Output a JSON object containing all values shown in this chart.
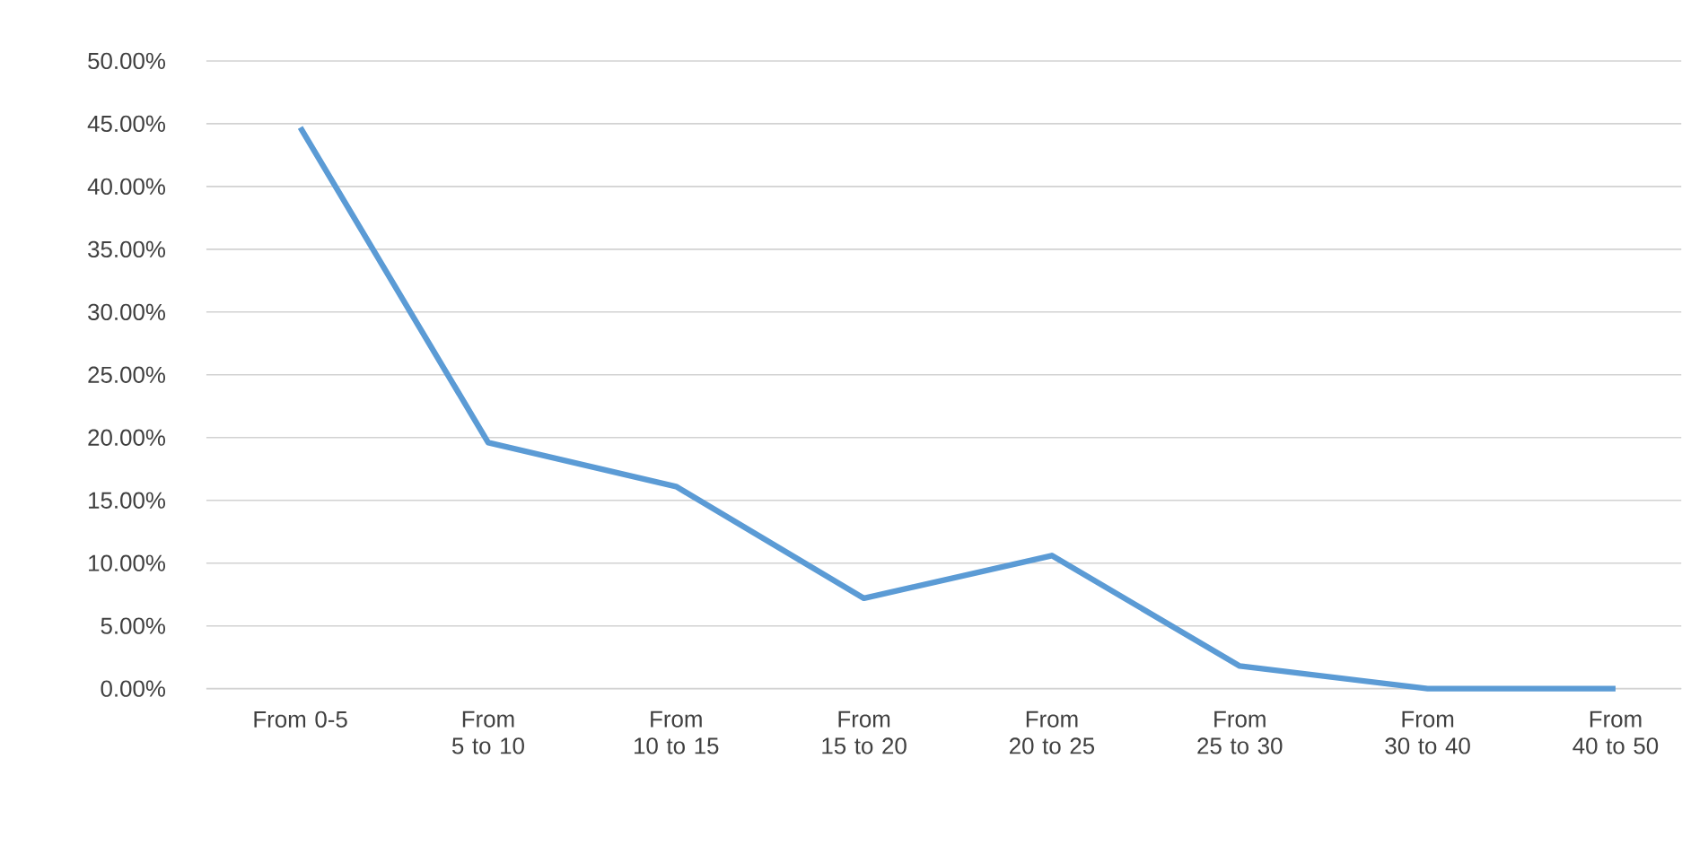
{
  "chart_data": {
    "type": "line",
    "categories": [
      "From 0-5",
      "From 5 to 10",
      "From 10 to 15",
      "From 15 to 20",
      "From 20 to 25",
      "From 25 to 30",
      "From 30 to 40",
      "From 40 to 50"
    ],
    "series": [
      {
        "color": "#5b9bd5",
        "values": [
          44.7,
          19.6,
          16.1,
          7.2,
          10.6,
          1.8,
          0,
          0
        ]
      }
    ],
    "ylim": [
      0,
      50
    ],
    "yticks": [
      {
        "value": 0,
        "label": "0.00%"
      },
      {
        "value": 5,
        "label": "5.00%"
      },
      {
        "value": 10,
        "label": "10.00%"
      },
      {
        "value": 15,
        "label": "15.00%"
      },
      {
        "value": 20,
        "label": "20.00%"
      },
      {
        "value": 25,
        "label": "25.00%"
      },
      {
        "value": 30,
        "label": "30.00%"
      },
      {
        "value": 35,
        "label": "35.00%"
      },
      {
        "value": 40,
        "label": "40.00%"
      },
      {
        "value": 45,
        "label": "45.00%"
      },
      {
        "value": 50,
        "label": "50.00%"
      }
    ],
    "grid": "y",
    "marker": "none",
    "line_style": "solid"
  }
}
